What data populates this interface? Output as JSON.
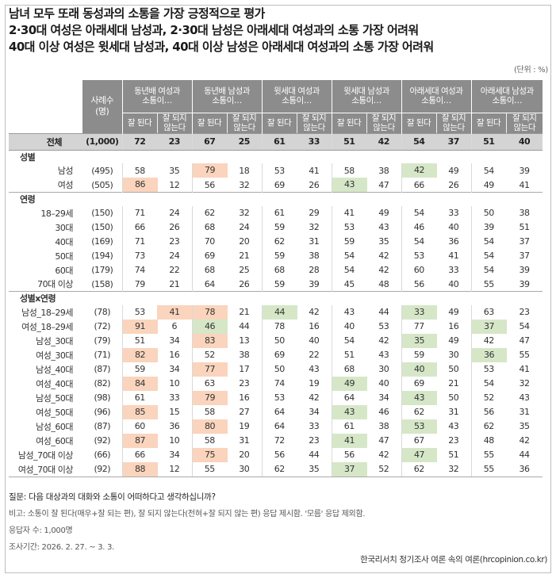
{
  "title_lines": [
    "남녀 모두 또래 동성과의 소통을 가장 긍정적으로 평가",
    "2·30대 여성은 아래세대 남성과, 2·30대 남성은 아래세대 여성과의 소통 가장 어려워",
    "40대 이상 여성은 윗세대 남성과, 40대 이상 남성은 아래세대 여성과의 소통 가장 어려워"
  ],
  "unit": "(단위 : %)",
  "header": {
    "sample_label": [
      "사례수",
      "(명)"
    ],
    "questions": [
      [
        "동년배 여성과",
        "소통이…"
      ],
      [
        "동년배 남성과",
        "소통이…"
      ],
      [
        "윗세대 여성과",
        "소통이…"
      ],
      [
        "윗세대 남성과",
        "소통이…"
      ],
      [
        "아래세대 여성과",
        "소통이…"
      ],
      [
        "아래세대 남성과",
        "소통이…"
      ]
    ],
    "sub_good": "잘 된다",
    "sub_bad": [
      "잘 되지",
      "않는다"
    ]
  },
  "chart_data": {
    "type": "table",
    "columns": [
      "동년배 여성과 소통이… 잘 된다",
      "동년배 여성과 소통이… 잘 되지 않는다",
      "동년배 남성과 소통이… 잘 된다",
      "동년배 남성과 소통이… 잘 되지 않는다",
      "윗세대 여성과 소통이… 잘 된다",
      "윗세대 여성과 소통이… 잘 되지 않는다",
      "윗세대 남성과 소통이… 잘 된다",
      "윗세대 남성과 소통이… 잘 되지 않는다",
      "아래세대 여성과 소통이… 잘 된다",
      "아래세대 여성과 소통이… 잘 되지 않는다",
      "아래세대 남성과 소통이… 잘 된다",
      "아래세대 남성과 소통이… 잘 되지 않는다"
    ],
    "highlight_colors": {
      "high": "#fad4bd",
      "low": "#d6e7c8"
    },
    "total": {
      "label": "전체",
      "n": "(1,000)",
      "values": [
        72,
        23,
        67,
        25,
        61,
        33,
        51,
        42,
        54,
        37,
        51,
        40
      ]
    },
    "sections": [
      {
        "name": "성별",
        "rows": [
          {
            "label": "남성",
            "n": "(495)",
            "values": [
              58,
              35,
              79,
              18,
              53,
              41,
              58,
              38,
              42,
              49,
              54,
              39
            ],
            "hl": {
              "2": "high",
              "8": "low"
            }
          },
          {
            "label": "여성",
            "n": "(505)",
            "values": [
              86,
              12,
              56,
              32,
              69,
              26,
              43,
              47,
              66,
              26,
              49,
              41
            ],
            "hl": {
              "0": "high",
              "6": "low"
            }
          }
        ]
      },
      {
        "name": "연령",
        "rows": [
          {
            "label": "18–29세",
            "n": "(150)",
            "values": [
              71,
              24,
              62,
              32,
              61,
              29,
              41,
              49,
              54,
              33,
              50,
              38
            ],
            "hl": {}
          },
          {
            "label": "30대",
            "n": "(150)",
            "values": [
              66,
              26,
              68,
              24,
              59,
              32,
              53,
              43,
              46,
              40,
              39,
              51
            ],
            "hl": {}
          },
          {
            "label": "40대",
            "n": "(169)",
            "values": [
              71,
              23,
              70,
              20,
              62,
              31,
              59,
              35,
              54,
              36,
              54,
              37
            ],
            "hl": {}
          },
          {
            "label": "50대",
            "n": "(194)",
            "values": [
              73,
              24,
              69,
              21,
              59,
              38,
              54,
              42,
              53,
              41,
              54,
              37
            ],
            "hl": {}
          },
          {
            "label": "60대",
            "n": "(179)",
            "values": [
              74,
              22,
              68,
              25,
              68,
              28,
              54,
              42,
              60,
              33,
              54,
              39
            ],
            "hl": {}
          },
          {
            "label": "70대 이상",
            "n": "(158)",
            "values": [
              79,
              21,
              64,
              26,
              59,
              39,
              45,
              48,
              56,
              40,
              55,
              39
            ],
            "hl": {}
          }
        ]
      },
      {
        "name": "성별x연령",
        "rows": [
          {
            "label": "남성_18–29세",
            "n": "(78)",
            "values": [
              53,
              41,
              78,
              21,
              44,
              42,
              43,
              44,
              33,
              49,
              63,
              23
            ],
            "hl": {
              "1": "high",
              "2": "high",
              "4": "low",
              "8": "low"
            }
          },
          {
            "label": "여성_18–29세",
            "n": "(72)",
            "values": [
              91,
              6,
              46,
              44,
              78,
              16,
              40,
              53,
              77,
              16,
              37,
              54
            ],
            "hl": {
              "0": "high",
              "2": "low",
              "10": "low"
            }
          },
          {
            "label": "남성_30대",
            "n": "(79)",
            "values": [
              51,
              34,
              83,
              13,
              50,
              40,
              54,
              42,
              35,
              49,
              42,
              47
            ],
            "hl": {
              "2": "high",
              "8": "low"
            }
          },
          {
            "label": "여성_30대",
            "n": "(71)",
            "values": [
              82,
              16,
              52,
              38,
              69,
              22,
              51,
              43,
              59,
              30,
              36,
              55
            ],
            "hl": {
              "0": "high",
              "10": "low"
            }
          },
          {
            "label": "남성_40대",
            "n": "(87)",
            "values": [
              59,
              34,
              77,
              17,
              50,
              43,
              68,
              30,
              40,
              50,
              53,
              41
            ],
            "hl": {
              "2": "high",
              "8": "low"
            }
          },
          {
            "label": "여성_40대",
            "n": "(82)",
            "values": [
              84,
              10,
              63,
              23,
              74,
              19,
              49,
              40,
              69,
              21,
              54,
              32
            ],
            "hl": {
              "0": "high",
              "6": "low"
            }
          },
          {
            "label": "남성_50대",
            "n": "(98)",
            "values": [
              61,
              33,
              79,
              16,
              53,
              42,
              64,
              34,
              43,
              50,
              52,
              43
            ],
            "hl": {
              "2": "high",
              "8": "low"
            }
          },
          {
            "label": "여성_50대",
            "n": "(96)",
            "values": [
              85,
              15,
              58,
              27,
              64,
              34,
              43,
              46,
              62,
              31,
              56,
              31
            ],
            "hl": {
              "0": "high",
              "6": "low"
            }
          },
          {
            "label": "남성_60대",
            "n": "(87)",
            "values": [
              60,
              36,
              80,
              19,
              64,
              33,
              61,
              38,
              53,
              43,
              62,
              35
            ],
            "hl": {
              "2": "high",
              "8": "low"
            }
          },
          {
            "label": "여성_60대",
            "n": "(92)",
            "values": [
              87,
              10,
              58,
              31,
              72,
              23,
              41,
              47,
              67,
              23,
              48,
              42
            ],
            "hl": {
              "0": "high",
              "6": "low"
            }
          },
          {
            "label": "남성_70대 이상",
            "n": "(66)",
            "values": [
              66,
              34,
              75,
              20,
              56,
              44,
              56,
              42,
              47,
              51,
              55,
              44
            ],
            "hl": {
              "2": "high",
              "8": "low"
            }
          },
          {
            "label": "여성_70대 이상",
            "n": "(92)",
            "values": [
              88,
              12,
              55,
              30,
              62,
              35,
              37,
              52,
              62,
              32,
              55,
              36
            ],
            "hl": {
              "0": "high",
              "6": "low"
            }
          }
        ]
      }
    ]
  },
  "notes": {
    "question": "질문: 다음 대상과의 대화와 소통이 어떠하다고 생각하십니까?",
    "remark": "비고: 소통이 잘 된다(매우+잘 되는 편), 잘 되지 않는다(전혀+잘 되지 않는 편) 응답 제시함. '모름' 응답 제외함.",
    "respondents": "응답자 수: 1,000명",
    "period": "조사기간: 2026. 2. 27. ~ 3. 3."
  },
  "source": "한국리서치 정기조사 여론 속의 여론(hrcopinion.co.kr)"
}
